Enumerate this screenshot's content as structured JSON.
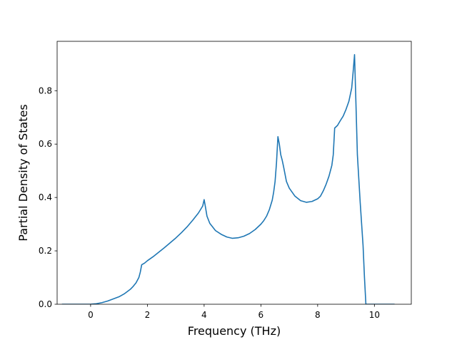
{
  "chart_data": {
    "type": "line",
    "title": "",
    "xlabel": "Frequency (THz)",
    "ylabel": "Partial Density of States",
    "xlim": [
      -1.18,
      11.3
    ],
    "ylim": [
      0,
      0.985
    ],
    "xticks": [
      0,
      2,
      4,
      6,
      8,
      10
    ],
    "yticks": [
      0.0,
      0.2,
      0.4,
      0.6,
      0.8
    ],
    "xtick_labels": [
      "0",
      "2",
      "4",
      "6",
      "8",
      "10"
    ],
    "ytick_labels": [
      "0.0",
      "0.2",
      "0.4",
      "0.6",
      "0.8"
    ],
    "grid": false,
    "legend": "none",
    "series": [
      {
        "color": "#1f77b4",
        "x": [
          -1.0,
          -0.5,
          0.0,
          0.2,
          0.4,
          0.6,
          0.8,
          1.0,
          1.2,
          1.4,
          1.5,
          1.6,
          1.7,
          1.75,
          1.8,
          1.9,
          2.0,
          2.2,
          2.4,
          2.6,
          2.8,
          3.0,
          3.2,
          3.4,
          3.6,
          3.8,
          3.95,
          4.0,
          4.05,
          4.1,
          4.2,
          4.4,
          4.6,
          4.8,
          5.0,
          5.2,
          5.4,
          5.6,
          5.8,
          6.0,
          6.1,
          6.2,
          6.3,
          6.4,
          6.45,
          6.5,
          6.55,
          6.6,
          6.65,
          6.7,
          6.75,
          6.8,
          6.9,
          7.0,
          7.2,
          7.4,
          7.6,
          7.8,
          8.0,
          8.1,
          8.2,
          8.3,
          8.4,
          8.5,
          8.55,
          8.6,
          8.65,
          8.7,
          8.8,
          8.9,
          9.0,
          9.1,
          9.2,
          9.25,
          9.3,
          9.35,
          9.4,
          9.5,
          9.6,
          9.65,
          9.7,
          9.75,
          9.8,
          10.0,
          10.7
        ],
        "y": [
          0.0,
          0.0,
          0.0,
          0.002,
          0.006,
          0.012,
          0.02,
          0.028,
          0.04,
          0.056,
          0.067,
          0.08,
          0.1,
          0.12,
          0.148,
          0.154,
          0.163,
          0.178,
          0.195,
          0.212,
          0.23,
          0.248,
          0.268,
          0.29,
          0.315,
          0.342,
          0.368,
          0.392,
          0.362,
          0.33,
          0.303,
          0.276,
          0.262,
          0.252,
          0.247,
          0.249,
          0.255,
          0.265,
          0.28,
          0.3,
          0.313,
          0.33,
          0.355,
          0.39,
          0.42,
          0.46,
          0.53,
          0.628,
          0.6,
          0.56,
          0.54,
          0.515,
          0.46,
          0.435,
          0.405,
          0.388,
          0.382,
          0.385,
          0.395,
          0.405,
          0.425,
          0.45,
          0.48,
          0.52,
          0.56,
          0.66,
          0.665,
          0.67,
          0.688,
          0.705,
          0.73,
          0.76,
          0.81,
          0.87,
          0.935,
          0.75,
          0.56,
          0.38,
          0.22,
          0.1,
          0.0,
          0.0,
          0.0,
          0.0,
          0.0
        ]
      }
    ]
  }
}
